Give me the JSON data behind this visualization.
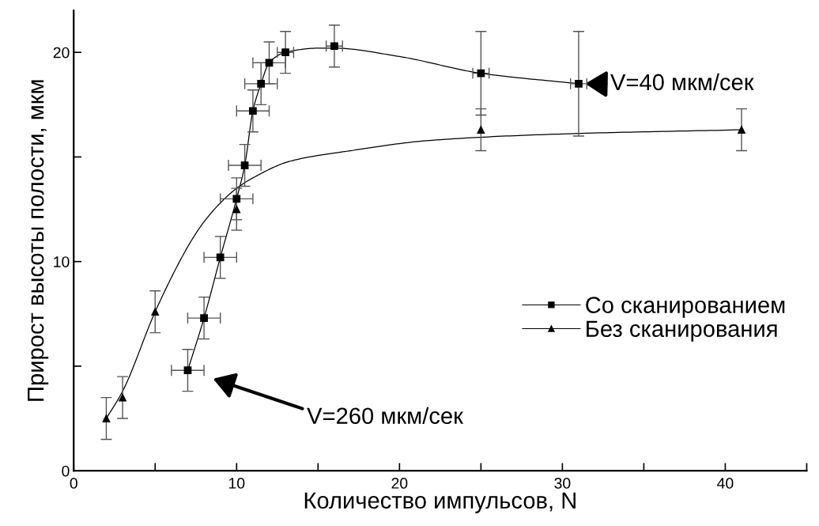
{
  "chart_data": {
    "type": "scatter",
    "xlabel": "Количество импульсов, N",
    "ylabel": "Прирост высоты полости, мкм",
    "xlim": [
      0,
      45
    ],
    "ylim": [
      0,
      22
    ],
    "xticks": [
      0,
      {
        "value": 5,
        "label": null
      },
      10,
      {
        "value": 15,
        "label": null
      },
      20,
      {
        "value": 25,
        "label": null
      },
      30,
      {
        "value": 35,
        "label": null
      },
      40,
      {
        "value": 45,
        "label": null
      }
    ],
    "yticks": [
      0,
      {
        "value": 5,
        "label": null
      },
      10,
      {
        "value": 15,
        "label": null
      },
      20
    ],
    "grid": false,
    "legend": "right",
    "series": [
      {
        "name": "Со сканированием",
        "color": "#000000",
        "marker": "square",
        "x": [
          7,
          8,
          9,
          10,
          10.5,
          11,
          11.5,
          12,
          13,
          16,
          25,
          31
        ],
        "values": [
          4.8,
          7.3,
          10.2,
          13.0,
          14.6,
          17.2,
          18.5,
          19.5,
          20.0,
          20.3,
          19.0,
          18.5
        ],
        "errors": [
          1,
          1,
          1,
          1,
          1,
          1,
          1,
          1,
          1,
          1,
          2,
          2.5
        ],
        "xerrors": [
          1,
          1,
          1,
          1,
          1,
          1,
          1,
          1,
          0.5,
          0.5,
          0.5,
          0.5
        ]
      },
      {
        "name": "Без сканирования",
        "color": "#000000",
        "marker": "triangle",
        "x": [
          2,
          3,
          5,
          10,
          25,
          41
        ],
        "values": [
          2.5,
          3.5,
          7.6,
          12.5,
          16.3,
          16.3
        ],
        "errors": [
          1,
          1,
          1,
          1,
          1,
          1
        ]
      },
      {
        "type": "line",
        "color": "#000000",
        "x": [
          7,
          8,
          9,
          10,
          10.5,
          11,
          11.5,
          12,
          13,
          15,
          16,
          20,
          25,
          31
        ],
        "values": [
          4.8,
          7.3,
          10.2,
          13.0,
          14.6,
          17.2,
          18.5,
          19.5,
          20.0,
          20.2,
          20.2,
          19.8,
          19.0,
          18.5
        ]
      },
      {
        "type": "line",
        "color": "#000000",
        "x": [
          2,
          3,
          5,
          6.5,
          7.3,
          8,
          9,
          10,
          11,
          13.3,
          17,
          22,
          30,
          41
        ],
        "values": [
          2.5,
          3.8,
          7.6,
          10.0,
          11.1,
          11.9,
          12.8,
          13.5,
          14.0,
          14.8,
          15.3,
          15.8,
          16.1,
          16.3
        ]
      }
    ],
    "annotations": [
      "V=40 мкм/сек",
      "V=260 мкм/сек"
    ]
  }
}
